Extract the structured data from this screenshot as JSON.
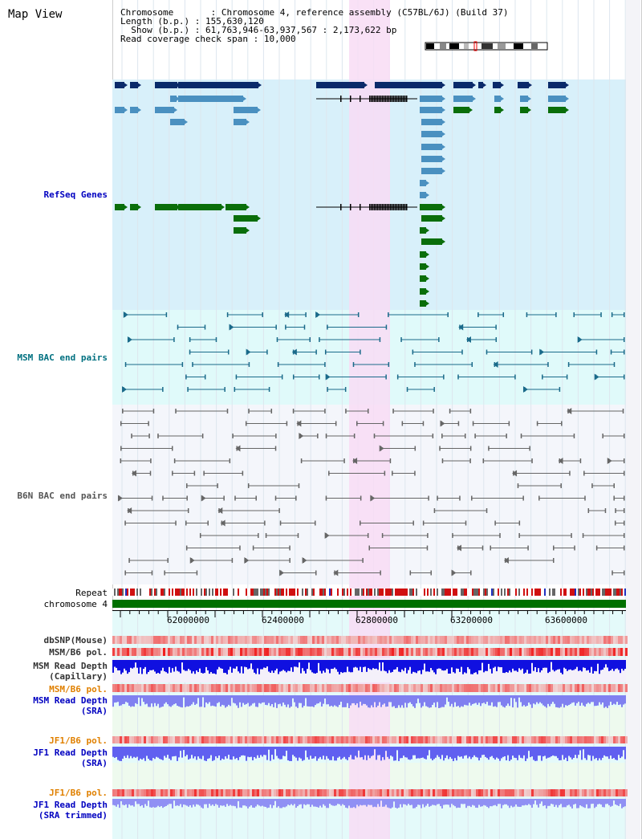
{
  "page_title": "Map View",
  "header": {
    "chromosome_label": "Chromosome",
    "chromosome_value": "Chromosome 4, reference assembly (C57BL/6J) (Build 37)",
    "length_label": "Length (b.p.)",
    "length_value": "155,630,120",
    "show_label": "Show (b.p.)",
    "show_value": "61,763,946-63,937,567 : 2,173,622 bp",
    "coverage_label": "Read coverage check span",
    "coverage_value": "10,000"
  },
  "tracks": {
    "refseq": "RefSeq Genes",
    "msm_bac": "MSM BAC end pairs",
    "b6n_bac": "B6N BAC end pairs",
    "repeat": "Repeat",
    "chromosome": "chromosome 4",
    "dbsnp": "dbSNP(Mouse)",
    "msm_b6_pol_1": "MSM/B6 pol.",
    "msm_read_depth_cap": "MSM Read Depth",
    "msm_read_depth_cap_sub": "(Capillary)",
    "msm_b6_pol_2": "MSM/B6 pol.",
    "msm_read_depth_sra": "MSM Read Depth",
    "msm_read_depth_sra_sub": "(SRA)",
    "jf1_b6_pol_1": "JF1/B6 pol.",
    "jf1_read_depth_sra": "JF1 Read Depth",
    "jf1_read_depth_sra_sub": "(SRA)",
    "jf1_b6_pol_2": "JF1/B6 pol.",
    "jf1_read_depth_trim": "JF1 Read Depth",
    "jf1_read_depth_trim_sub": "(SRA trimmed)"
  },
  "axis": {
    "ticks": [
      "62000000",
      "62400000",
      "62800000",
      "63200000",
      "63600000"
    ]
  },
  "colors": {
    "refseq_bg": "#d8f0fa",
    "msm_bac_bg": "#e0fafa",
    "b6n_bac_bg": "#f4f6fb",
    "highlight": "#f8dcf4",
    "gene_dark": "#0a2a6a",
    "gene_mid": "#4a90c0",
    "gene_green": "#0a6e0a",
    "msm_bac_line": "#1a6a8a",
    "b6n_bac_line": "#666666",
    "label_blue": "#0000c0",
    "label_teal": "#007080",
    "label_gray": "#555555",
    "label_orange": "#e08000",
    "label_dark": "#333333"
  }
}
